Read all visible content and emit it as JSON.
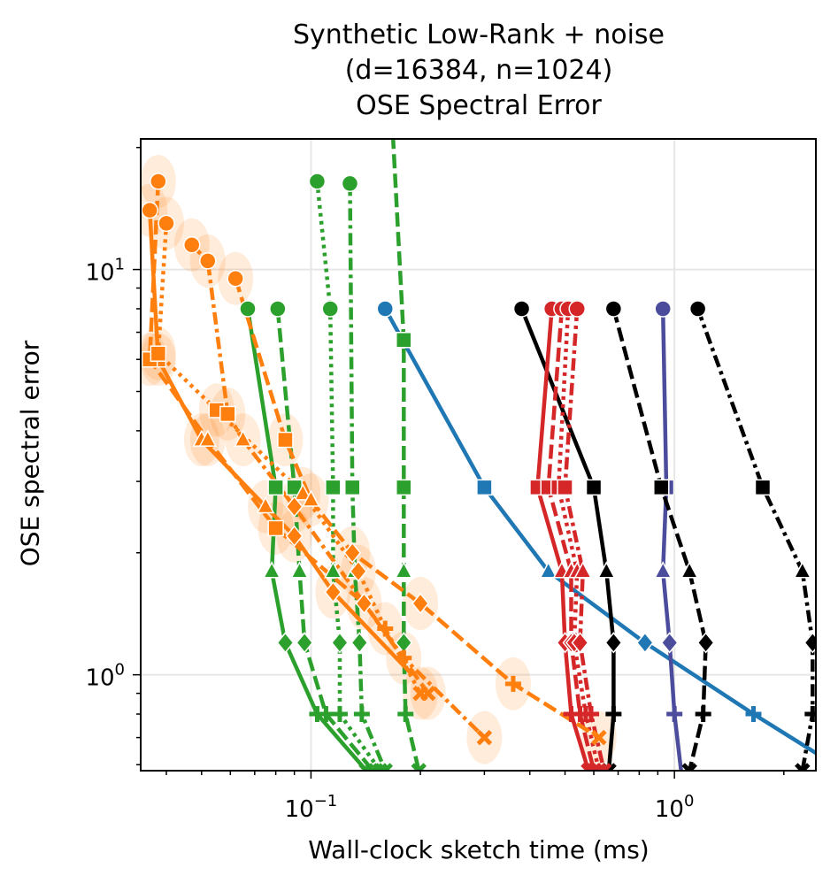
{
  "chart_data": {
    "type": "line",
    "title_lines": [
      "Synthetic Low-Rank + noise",
      "(d=16384, n=1024)",
      "OSE Spectral Error"
    ],
    "xlabel": "Wall-clock sketch time (ms)",
    "ylabel": "OSE spectral error",
    "xscale": "log",
    "yscale": "log",
    "xlim": [
      0.034,
      2.45
    ],
    "ylim": [
      0.58,
      21
    ],
    "x_ticks": [
      {
        "value": 0.1,
        "label": "10^-1"
      },
      {
        "value": 1,
        "label": "10^0"
      }
    ],
    "y_ticks": [
      {
        "value": 1,
        "label": "10^0"
      },
      {
        "value": 10,
        "label": "10^1"
      }
    ],
    "grid": true,
    "legend": "none",
    "y_levels": [
      8.0,
      6.0,
      3.8,
      2.9,
      2.2,
      1.8,
      1.45,
      1.2,
      0.9,
      0.8,
      0.68
    ],
    "markers": [
      "circle",
      "square",
      "triangle",
      "diamond",
      "plus",
      "x"
    ],
    "colors": {
      "orange": "#ff7f0e",
      "green": "#2ca02c",
      "red": "#d62728",
      "black": "#000000",
      "purple": "#4c4c9c",
      "blue": "#1f77b4"
    },
    "series": [
      {
        "color": "#1f77b4",
        "dash": "solid",
        "points": [
          [
            0.16,
            8.0,
            "circle"
          ],
          [
            0.3,
            2.9,
            "square"
          ],
          [
            0.45,
            1.8,
            "triangle"
          ],
          [
            0.83,
            1.2,
            "diamond"
          ],
          [
            1.65,
            0.8,
            "plus"
          ],
          [
            2.6,
            0.62,
            "none"
          ]
        ]
      },
      {
        "color": "#4c4c9c",
        "dash": "solid",
        "points": [
          [
            0.93,
            8.0,
            "circle"
          ],
          [
            0.95,
            2.9,
            "square"
          ],
          [
            0.93,
            1.8,
            "triangle"
          ],
          [
            0.97,
            1.2,
            "diamond"
          ],
          [
            1.0,
            0.8,
            "plus"
          ],
          [
            1.05,
            0.55,
            "none"
          ]
        ]
      },
      {
        "color": "#000000",
        "dash": "solid",
        "points": [
          [
            0.38,
            8.0,
            "circle"
          ],
          [
            0.6,
            2.9,
            "square"
          ],
          [
            0.65,
            1.8,
            "triangle"
          ],
          [
            0.68,
            1.2,
            "diamond"
          ],
          [
            0.68,
            0.8,
            "plus"
          ],
          [
            0.66,
            0.58,
            "x"
          ]
        ]
      },
      {
        "color": "#000000",
        "dash": "dashed",
        "points": [
          [
            0.68,
            8.0,
            "circle"
          ],
          [
            0.92,
            2.9,
            "square"
          ],
          [
            1.1,
            1.8,
            "triangle"
          ],
          [
            1.22,
            1.2,
            "diamond"
          ],
          [
            1.2,
            0.8,
            "plus"
          ],
          [
            1.1,
            0.58,
            "x"
          ]
        ]
      },
      {
        "color": "#000000",
        "dash": "dashdot",
        "points": [
          [
            1.16,
            8.0,
            "circle"
          ],
          [
            1.75,
            2.9,
            "square"
          ],
          [
            2.25,
            1.8,
            "triangle"
          ],
          [
            2.4,
            1.2,
            "diamond"
          ],
          [
            2.4,
            0.8,
            "plus"
          ],
          [
            2.25,
            0.58,
            "x"
          ]
        ]
      },
      {
        "color": "#d62728",
        "dash": "solid",
        "points": [
          [
            0.46,
            8.0,
            "circle"
          ],
          [
            0.42,
            2.9,
            "square"
          ],
          [
            0.49,
            1.8,
            "triangle"
          ],
          [
            0.5,
            1.2,
            "diamond"
          ],
          [
            0.52,
            0.8,
            "plus"
          ],
          [
            0.58,
            0.58,
            "x"
          ]
        ]
      },
      {
        "color": "#d62728",
        "dash": "dashed",
        "points": [
          [
            0.49,
            8.0,
            "circle"
          ],
          [
            0.45,
            2.9,
            "square"
          ],
          [
            0.52,
            1.8,
            "triangle"
          ],
          [
            0.52,
            1.2,
            "diamond"
          ],
          [
            0.55,
            0.8,
            "plus"
          ],
          [
            0.6,
            0.58,
            "x"
          ]
        ]
      },
      {
        "color": "#d62728",
        "dash": "dotted",
        "points": [
          [
            0.51,
            8.0,
            "circle"
          ],
          [
            0.48,
            2.9,
            "square"
          ],
          [
            0.54,
            1.8,
            "triangle"
          ],
          [
            0.53,
            1.2,
            "diamond"
          ],
          [
            0.57,
            0.8,
            "plus"
          ],
          [
            0.62,
            0.58,
            "x"
          ]
        ]
      },
      {
        "color": "#d62728",
        "dash": "dashdot",
        "points": [
          [
            0.54,
            8.0,
            "circle"
          ],
          [
            0.5,
            2.9,
            "square"
          ],
          [
            0.56,
            1.8,
            "triangle"
          ],
          [
            0.55,
            1.2,
            "diamond"
          ],
          [
            0.59,
            0.8,
            "plus"
          ],
          [
            0.64,
            0.58,
            "x"
          ]
        ]
      },
      {
        "color": "#2ca02c",
        "dash": "solid",
        "points": [
          [
            0.067,
            8.0,
            "circle"
          ],
          [
            0.08,
            2.9,
            "square"
          ],
          [
            0.078,
            1.8,
            "triangle"
          ],
          [
            0.085,
            1.2,
            "diamond"
          ],
          [
            0.104,
            0.8,
            "plus"
          ],
          [
            0.142,
            0.58,
            "x"
          ]
        ]
      },
      {
        "color": "#2ca02c",
        "dash": "dashed",
        "points": [
          [
            0.081,
            8.0,
            "circle"
          ],
          [
            0.09,
            2.9,
            "square"
          ],
          [
            0.093,
            1.8,
            "triangle"
          ],
          [
            0.096,
            1.2,
            "diamond"
          ],
          [
            0.11,
            0.8,
            "plus"
          ],
          [
            0.148,
            0.58,
            "x"
          ]
        ]
      },
      {
        "color": "#2ca02c",
        "dash": "dotted",
        "points": [
          [
            0.104,
            16.5,
            "circle"
          ],
          [
            0.113,
            8.0,
            "circle"
          ],
          [
            0.115,
            2.9,
            "square"
          ],
          [
            0.115,
            1.8,
            "triangle"
          ],
          [
            0.12,
            1.2,
            "diamond"
          ],
          [
            0.12,
            0.8,
            "plus"
          ],
          [
            0.155,
            0.58,
            "x"
          ]
        ]
      },
      {
        "color": "#2ca02c",
        "dash": "dashdot",
        "points": [
          [
            0.128,
            16.3,
            "circle"
          ],
          [
            0.13,
            2.9,
            "square"
          ],
          [
            0.132,
            1.8,
            "triangle"
          ],
          [
            0.136,
            1.2,
            "diamond"
          ],
          [
            0.138,
            0.8,
            "plus"
          ],
          [
            0.16,
            0.58,
            "x"
          ]
        ]
      },
      {
        "color": "#2ca02c",
        "dash": "dashed",
        "points": [
          [
            0.168,
            21.5,
            "none"
          ],
          [
            0.18,
            6.7,
            "square"
          ],
          [
            0.18,
            2.9,
            "square"
          ],
          [
            0.18,
            1.8,
            "triangle"
          ],
          [
            0.18,
            1.2,
            "diamond"
          ],
          [
            0.182,
            0.8,
            "plus"
          ],
          [
            0.198,
            0.58,
            "x"
          ]
        ]
      },
      {
        "color": "#ff7f0e",
        "dash": "solid",
        "points": [
          [
            0.036,
            14.0,
            "circle"
          ],
          [
            0.038,
            6.0,
            "square"
          ],
          [
            0.05,
            3.8,
            "triangle"
          ],
          [
            0.075,
            2.6,
            "triangle"
          ],
          [
            0.09,
            2.2,
            "diamond"
          ],
          [
            0.115,
            1.6,
            "diamond"
          ],
          [
            0.19,
            1.0,
            "none"
          ]
        ]
      },
      {
        "color": "#ff7f0e",
        "dash": "dashed",
        "points": [
          [
            0.038,
            16.5,
            "circle"
          ],
          [
            0.036,
            6.0,
            "square"
          ],
          [
            0.052,
            3.8,
            "triangle"
          ],
          [
            0.08,
            2.3,
            "square"
          ],
          [
            0.14,
            1.5,
            "diamond"
          ],
          [
            0.21,
            0.9,
            "x"
          ]
        ]
      },
      {
        "color": "#ff7f0e",
        "dash": "dotted",
        "points": [
          [
            0.04,
            13.0,
            "circle"
          ],
          [
            0.038,
            6.2,
            "square"
          ],
          [
            0.055,
            4.5,
            "square"
          ],
          [
            0.095,
            2.8,
            "triangle"
          ],
          [
            0.135,
            1.8,
            "diamond"
          ],
          [
            0.16,
            1.3,
            "plus"
          ],
          [
            0.2,
            0.9,
            "x"
          ]
        ]
      },
      {
        "color": "#ff7f0e",
        "dash": "dashdot",
        "points": [
          [
            0.047,
            11.5,
            "circle"
          ],
          [
            0.052,
            10.5,
            "circle"
          ],
          [
            0.059,
            4.4,
            "square"
          ],
          [
            0.065,
            3.8,
            "triangle"
          ],
          [
            0.09,
            2.6,
            "diamond"
          ],
          [
            0.18,
            1.1,
            "plus"
          ],
          [
            0.3,
            0.7,
            "x"
          ]
        ]
      },
      {
        "color": "#ff7f0e",
        "dash": "dashed",
        "points": [
          [
            0.062,
            9.5,
            "circle"
          ],
          [
            0.085,
            3.8,
            "square"
          ],
          [
            0.1,
            2.7,
            "triangle"
          ],
          [
            0.13,
            2.0,
            "diamond"
          ],
          [
            0.2,
            1.5,
            "diamond"
          ],
          [
            0.36,
            0.95,
            "plus"
          ],
          [
            0.62,
            0.7,
            "x"
          ]
        ]
      }
    ]
  }
}
